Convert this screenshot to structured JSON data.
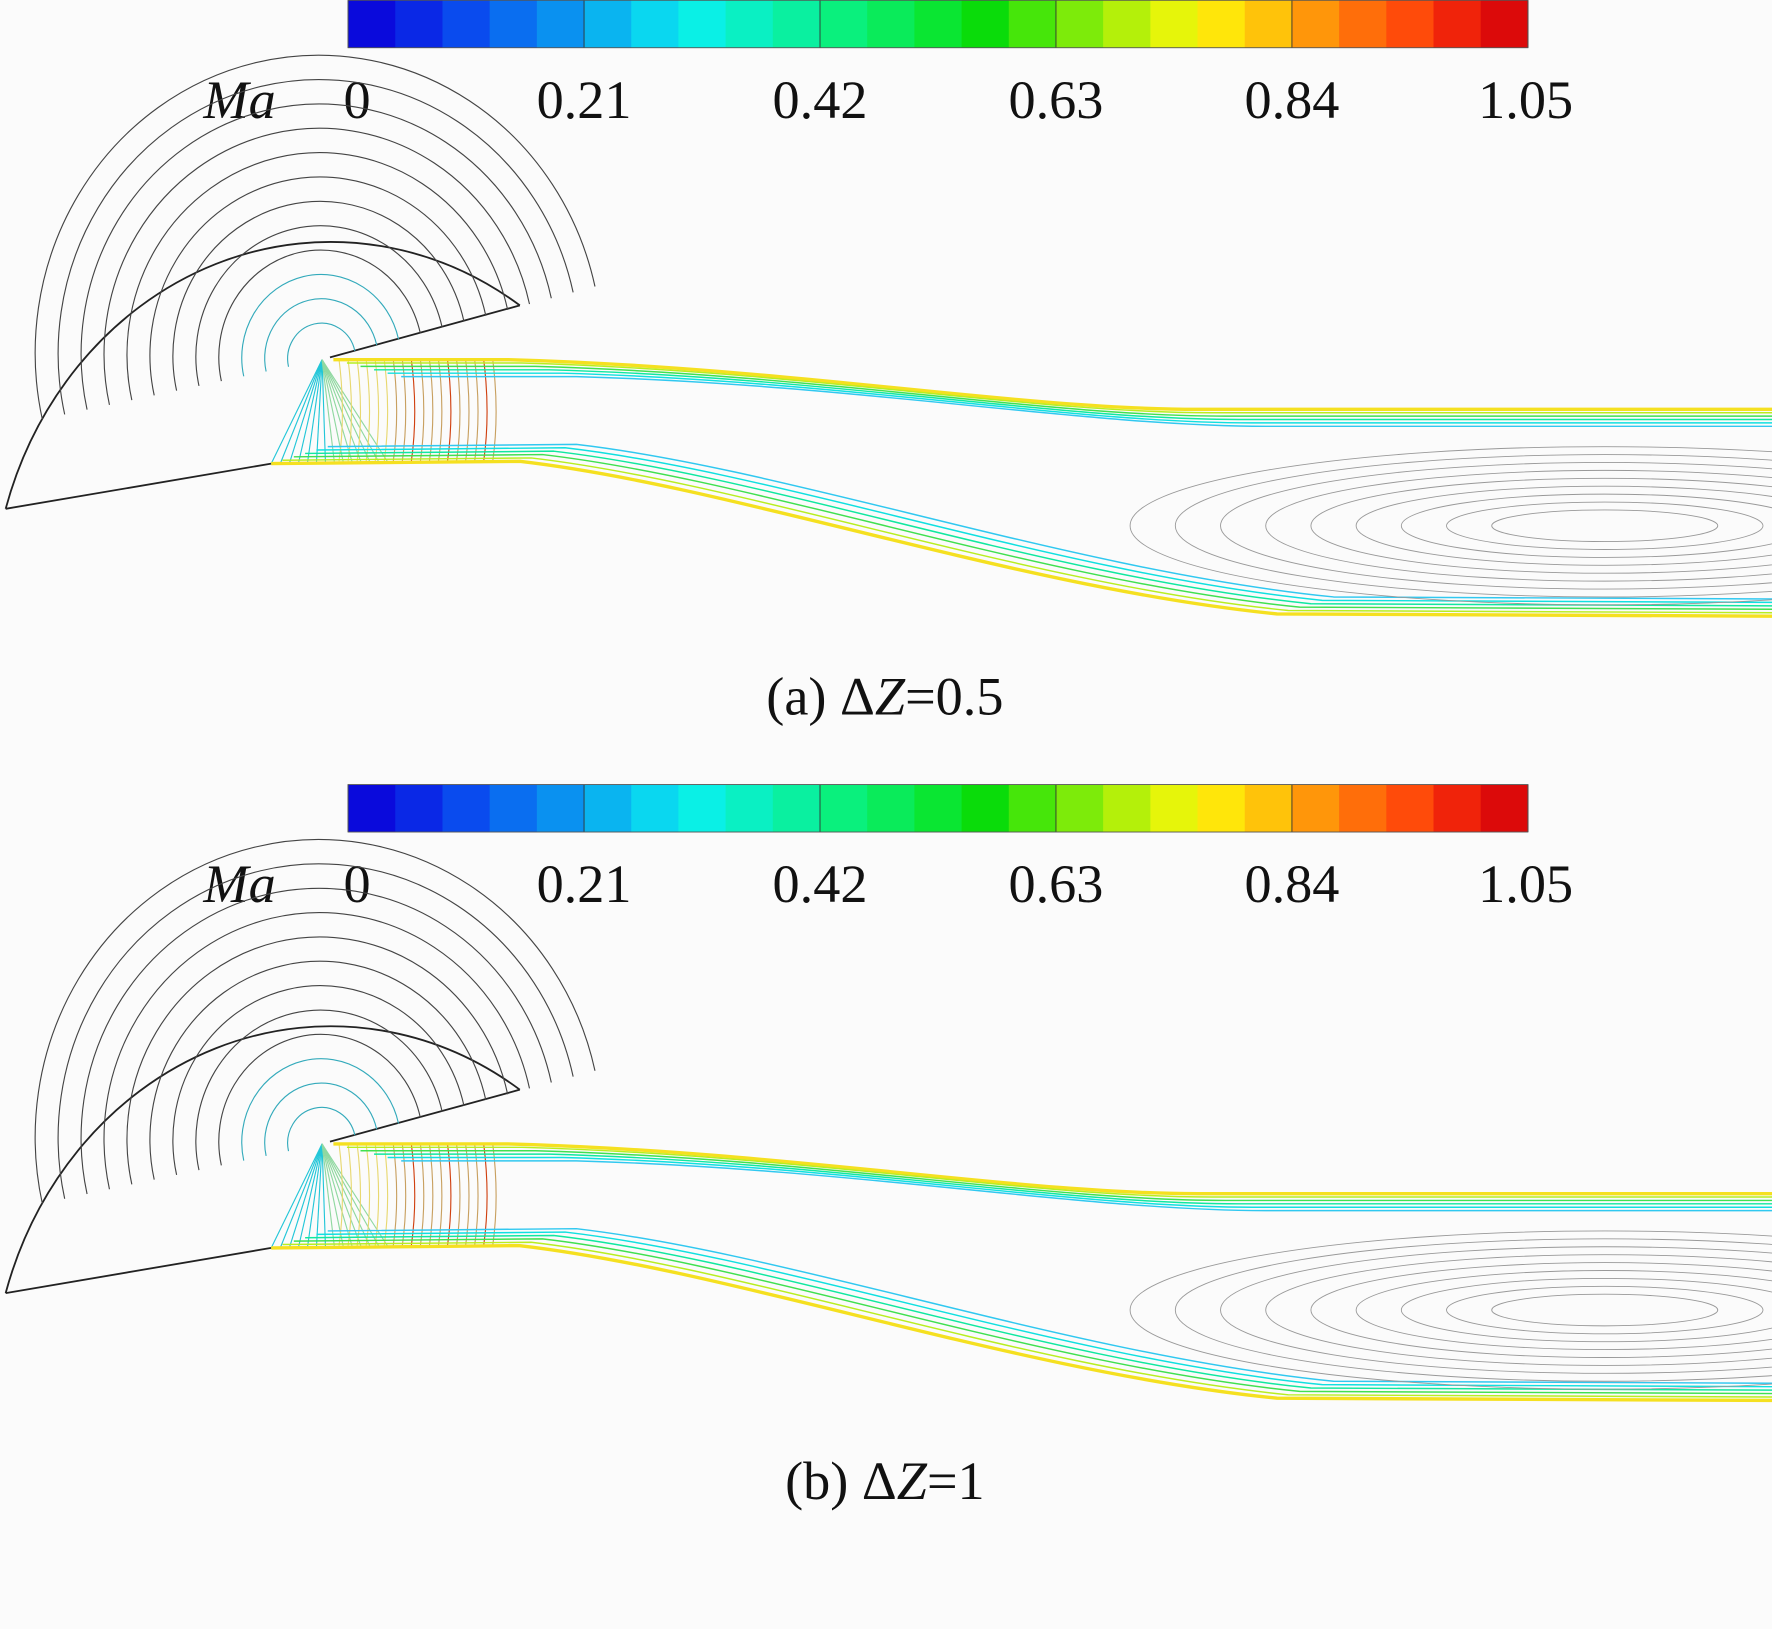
{
  "panels": [
    {
      "colorbar": {
        "label": "Ma",
        "ticks": [
          0,
          0.21,
          0.42,
          0.63,
          0.84,
          1.05
        ]
      },
      "caption": [
        "(a) Δ",
        "Z",
        "=0.5"
      ]
    },
    {
      "colorbar": {
        "label": "Ma",
        "ticks": [
          0,
          0.21,
          0.42,
          0.63,
          0.84,
          1.05
        ]
      },
      "caption": [
        "(b) Δ",
        "Z",
        "=1"
      ]
    }
  ],
  "colormap": [
    "#0a0adc",
    "#0a28e6",
    "#0a4bee",
    "#0a6ef0",
    "#0a91f0",
    "#0ab4f0",
    "#0ad7f0",
    "#0af0e6",
    "#0af0c3",
    "#0af0a0",
    "#0af07d",
    "#0aeb5a",
    "#0ae632",
    "#0adc0a",
    "#46e60a",
    "#7deb0a",
    "#b4f00a",
    "#e6f50a",
    "#ffe60a",
    "#ffc30a",
    "#ff960a",
    "#ff6e0a",
    "#ff4b0a",
    "#f0230a",
    "#dc0a0a"
  ]
}
